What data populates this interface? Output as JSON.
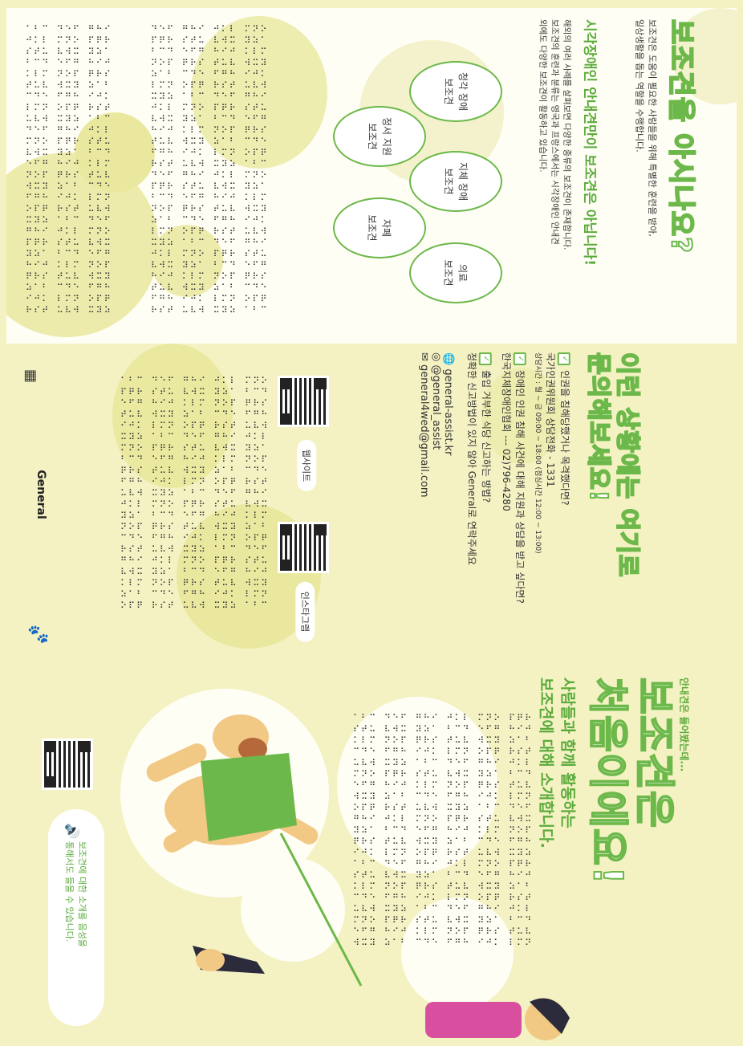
{
  "top": {
    "title": "보조견을 아시나요?",
    "intro_line1": "보조견은 도움이 필요한 사람들을 위해 특별한 훈련을 받아,",
    "intro_line2": "일상생활을 돕는 역할을 수행합니다.",
    "headline": "시각장애인 안내견만이 보조견은 아닙니다!",
    "desc_line1": "해외의 여러 사례를 살펴보면 다양한 종류의 보조견이 존재합니다.",
    "desc_line2": "보조견의 훈련과 분류는 영국과 프랑스에서는 시각장애인 안내견",
    "desc_line3": "외에도 다양한 보조견이 활동하고 있습니다.",
    "dog_types": [
      {
        "label": "청각 장애\n보조견"
      },
      {
        "label": "지체 장애\n보조견"
      },
      {
        "label": "의료\n보조견"
      },
      {
        "label": "정서 지원\n보조견"
      },
      {
        "label": "자폐\n보조견"
      }
    ]
  },
  "mid": {
    "title_line1": "이런 상황에는 여기로",
    "title_line2": "문의해보세요!",
    "q1": "인권을 침해당했거나 목격했다면?",
    "a1": "국가인권위원회 상담전화 - 1331",
    "a1_hours": "상담시간 : 월 ~ 금 09:00 ~ 18:00 (점심시간 12:00 ~ 13:00)",
    "q2": "장애인 인권 침해 사건에 대해 지원과 상담을 받고 싶다면?",
    "a2": "한국지체장애인협회  ---  02)796-4280",
    "q3": "출입 거부한 식당 신고하는 방법?",
    "a3": "정확한 신고방법이 있지 않아 General로 연락주세요",
    "website": "general-assist.kr",
    "instagram": "@general_assist",
    "email": "general4wed@gmail.com",
    "qr_label_web": "웹사이트",
    "qr_label_insta": "인스타그램",
    "brand": "General"
  },
  "bot": {
    "pre": "안내견은 들어봤는데...",
    "title_line1": "보조견은",
    "title_line2": "처음이에요!",
    "sub_line1": "사람들과 함께 활동하는",
    "sub_line2": "보조견에 대해 소개합니다.",
    "bubble_line1": "보조견에 대한 소개를 음성을",
    "bubble_line2": "통해서도 들을 수 있습니다."
  },
  "colors": {
    "accent": "#6cb84a",
    "blob": "#e6e58a",
    "bg": "#f4f2c3"
  }
}
